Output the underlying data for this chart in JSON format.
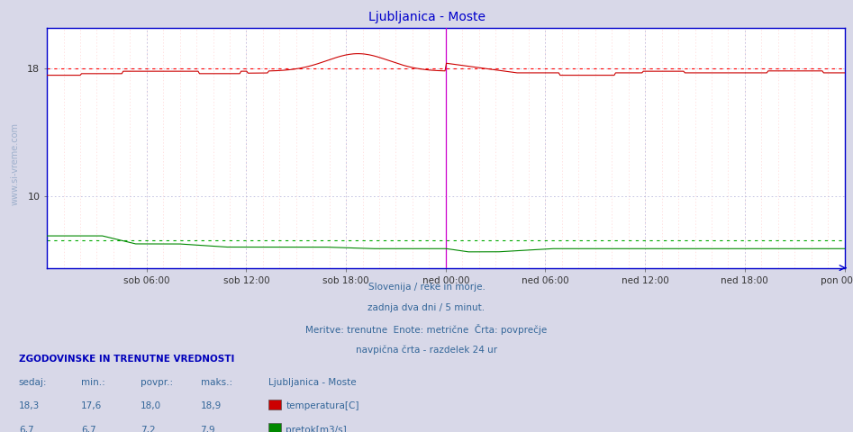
{
  "title": "Ljubljanica - Moste",
  "title_color": "#0000cc",
  "title_fontsize": 10,
  "bg_color": "#d8d8e8",
  "plot_bg_color": "#ffffff",
  "x_tick_labels": [
    "sob 06:00",
    "sob 12:00",
    "sob 18:00",
    "ned 00:00",
    "ned 06:00",
    "ned 12:00",
    "ned 18:00",
    "pon 00:00"
  ],
  "y_ticks": [
    10,
    18
  ],
  "ylim": [
    5.5,
    20.5
  ],
  "grid_color_major": "#bbbbdd",
  "grid_color_minor": "#ffcccc",
  "temp_color": "#cc0000",
  "temp_avg_color": "#ff0000",
  "pretok_color": "#008800",
  "pretok_avg_color": "#00aa00",
  "vline_color": "#cc00cc",
  "border_color": "#0000cc",
  "watermark_color": "#336699",
  "subtitle_lines": [
    "Slovenija / reke in morje.",
    "zadnja dva dni / 5 minut.",
    "Meritve: trenutne  Enote: metrične  Črta: povprečje",
    "navpična črta - razdelek 24 ur"
  ],
  "subtitle_color": "#336699",
  "legend_headers": [
    "sedaj:",
    "min.:",
    "povpr.:",
    "maks.:"
  ],
  "legend_col_label": "Ljubljanica - Moste",
  "legend_data": [
    [
      18.3,
      17.6,
      18.0,
      18.9,
      "temperatura[C]",
      "#cc0000"
    ],
    [
      6.7,
      6.7,
      7.2,
      7.9,
      "pretok[m3/s]",
      "#008800"
    ]
  ],
  "n_points": 576,
  "temp_avg": 18.0,
  "pretok_avg": 7.2
}
